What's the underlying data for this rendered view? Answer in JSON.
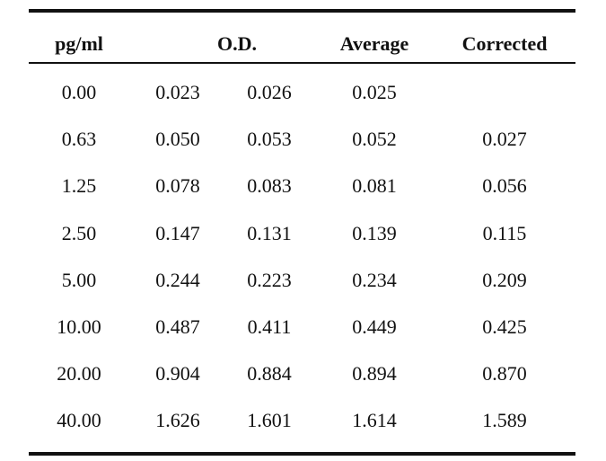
{
  "table": {
    "headers": {
      "concentration": "pg/ml",
      "od": "O.D.",
      "average": "Average",
      "corrected": "Corrected"
    },
    "rows": [
      {
        "conc": "0.00",
        "od1": "0.023",
        "od2": "0.026",
        "avg": "0.025",
        "corr": ""
      },
      {
        "conc": "0.63",
        "od1": "0.050",
        "od2": "0.053",
        "avg": "0.052",
        "corr": "0.027"
      },
      {
        "conc": "1.25",
        "od1": "0.078",
        "od2": "0.083",
        "avg": "0.081",
        "corr": "0.056"
      },
      {
        "conc": "2.50",
        "od1": "0.147",
        "od2": "0.131",
        "avg": "0.139",
        "corr": "0.115"
      },
      {
        "conc": "5.00",
        "od1": "0.244",
        "od2": "0.223",
        "avg": "0.234",
        "corr": "0.209"
      },
      {
        "conc": "10.00",
        "od1": "0.487",
        "od2": "0.411",
        "avg": "0.449",
        "corr": "0.425"
      },
      {
        "conc": "20.00",
        "od1": "0.904",
        "od2": "0.884",
        "avg": "0.894",
        "corr": "0.870"
      },
      {
        "conc": "40.00",
        "od1": "1.626",
        "od2": "1.601",
        "avg": "1.614",
        "corr": "1.589"
      }
    ]
  }
}
